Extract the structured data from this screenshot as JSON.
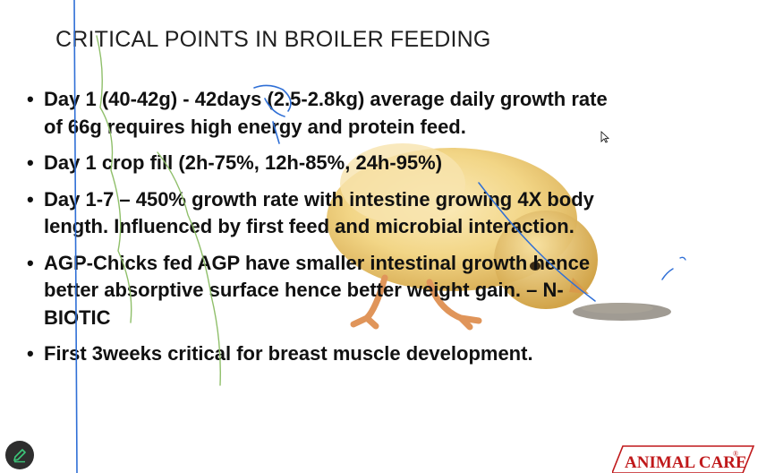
{
  "slide": {
    "title": "CRITICAL POINTS IN BROILER FEEDING",
    "bullets": [
      "Day 1 (40-42g)  - 42days (2.5-2.8kg) average daily growth rate of 66g requires high energy and protein feed.",
      "Day 1 crop fill (2h-75%, 12h-85%, 24h-95%)",
      "Day 1-7 – 450% growth rate with intestine growing 4X body length. Influenced by first feed and microbial interaction.",
      "AGP-Chicks fed AGP have smaller intestinal growth hence better absorptive surface hence better weight gain. – N- BIOTIC",
      "First 3weeks critical for breast muscle development."
    ],
    "bullet_char": "•"
  },
  "logo": {
    "text": "ANIMAL CARE",
    "mark": "®"
  },
  "icons": {
    "pen": "pen-icon",
    "cursor": "mouse-cursor-icon",
    "chick": "chick-image"
  },
  "colors": {
    "ink": "#2f6fd6",
    "logo_red": "#c0191b",
    "chick_yellow": "#f2d27a",
    "pen_button": "#2e2e2e",
    "pen_icon": "#3cc87a"
  }
}
